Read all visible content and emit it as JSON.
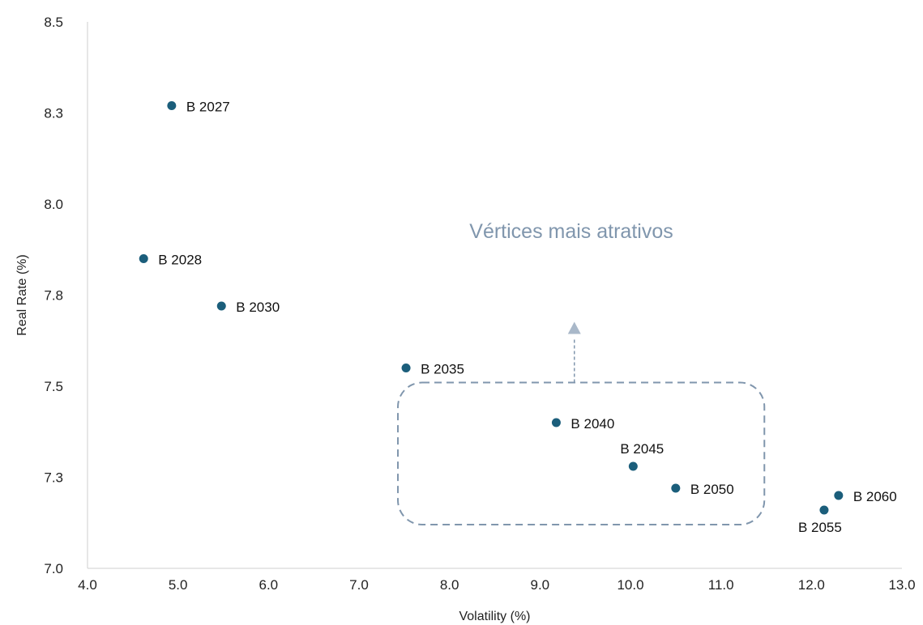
{
  "chart_data": {
    "type": "scatter",
    "xlabel": "Volatility (%)",
    "ylabel": "Real Rate (%)",
    "xlim": [
      4.0,
      13.0
    ],
    "ylim": [
      7.0,
      8.5
    ],
    "x_ticks": [
      4.0,
      5.0,
      6.0,
      7.0,
      8.0,
      9.0,
      10.0,
      11.0,
      12.0,
      13.0
    ],
    "y_ticks": [
      7.0,
      7.25,
      7.5,
      7.75,
      8.0,
      8.25,
      8.5
    ],
    "y_tick_labels": [
      "7.0",
      "7.3",
      "7.5",
      "7.8",
      "8.0",
      "8.3",
      "8.5"
    ],
    "grid": false,
    "point_color": "#1b5e7b",
    "points": [
      {
        "label": "B 2027",
        "x": 4.93,
        "y": 8.27
      },
      {
        "label": "B 2028",
        "x": 4.62,
        "y": 7.85
      },
      {
        "label": "B 2030",
        "x": 5.48,
        "y": 7.72
      },
      {
        "label": "B 2035",
        "x": 7.52,
        "y": 7.55
      },
      {
        "label": "B 2040",
        "x": 9.18,
        "y": 7.4
      },
      {
        "label": "B 2045",
        "x": 10.03,
        "y": 7.28
      },
      {
        "label": "B 2050",
        "x": 10.5,
        "y": 7.22
      },
      {
        "label": "B 2055",
        "x": 12.14,
        "y": 7.16
      },
      {
        "label": "B 2060",
        "x": 12.3,
        "y": 7.2
      }
    ],
    "annotation": {
      "text": "Vértices mais atrativos",
      "color": "#8096ad",
      "box_x": [
        7.43,
        11.48
      ],
      "box_y": [
        7.12,
        7.51
      ],
      "arrow_x": 9.38
    }
  }
}
